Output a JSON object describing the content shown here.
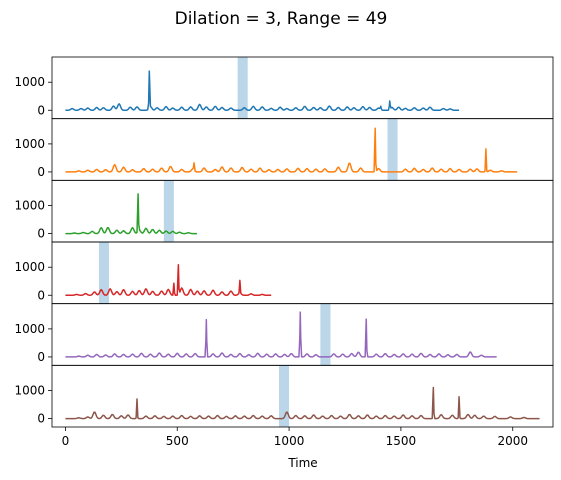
{
  "chart_data": {
    "type": "line",
    "title": "Dilation = 3, Range = 49",
    "xlabel": "Time",
    "xlim": [
      -60,
      2180
    ],
    "x_ticks": [
      0,
      500,
      1000,
      1500,
      2000
    ],
    "ylim": [
      -300,
      1900
    ],
    "y_ticks": [
      0,
      1000
    ],
    "panels": [
      {
        "color": "#1f77b4",
        "length": 1760,
        "highlight": [
          770,
          815
        ],
        "bumps": [
          [
            30,
            60
          ],
          [
            70,
            60
          ],
          [
            100,
            80
          ],
          [
            140,
            100
          ],
          [
            170,
            90
          ],
          [
            215,
            150
          ],
          [
            240,
            230
          ],
          [
            290,
            110
          ],
          [
            320,
            120
          ],
          [
            380,
            130
          ],
          [
            410,
            90
          ],
          [
            450,
            130
          ],
          [
            480,
            80
          ],
          [
            520,
            110
          ],
          [
            560,
            120
          ],
          [
            600,
            210
          ],
          [
            630,
            120
          ],
          [
            670,
            140
          ],
          [
            700,
            100
          ],
          [
            740,
            80
          ],
          [
            800,
            90
          ],
          [
            840,
            140
          ],
          [
            880,
            120
          ],
          [
            920,
            70
          ],
          [
            960,
            110
          ],
          [
            990,
            60
          ],
          [
            1030,
            90
          ],
          [
            1070,
            140
          ],
          [
            1110,
            100
          ],
          [
            1140,
            90
          ],
          [
            1180,
            150
          ],
          [
            1220,
            100
          ],
          [
            1260,
            120
          ],
          [
            1290,
            90
          ],
          [
            1330,
            130
          ],
          [
            1360,
            100
          ],
          [
            1400,
            80
          ],
          [
            1460,
            100
          ],
          [
            1490,
            110
          ],
          [
            1520,
            70
          ],
          [
            1560,
            90
          ],
          [
            1600,
            80
          ],
          [
            1630,
            110
          ],
          [
            1690,
            60
          ],
          [
            1720,
            50
          ]
        ],
        "spikes": [
          [
            375,
            1300
          ],
          [
            1450,
            300
          ],
          [
            1410,
            120
          ]
        ]
      },
      {
        "color": "#ff7f0e",
        "length": 2020,
        "highlight": [
          1440,
          1485
        ],
        "bumps": [
          [
            60,
            40
          ],
          [
            100,
            60
          ],
          [
            140,
            90
          ],
          [
            180,
            80
          ],
          [
            220,
            260
          ],
          [
            260,
            170
          ],
          [
            300,
            80
          ],
          [
            350,
            120
          ],
          [
            390,
            100
          ],
          [
            430,
            140
          ],
          [
            470,
            200
          ],
          [
            520,
            90
          ],
          [
            570,
            110
          ],
          [
            620,
            140
          ],
          [
            670,
            90
          ],
          [
            700,
            180
          ],
          [
            740,
            140
          ],
          [
            790,
            160
          ],
          [
            830,
            100
          ],
          [
            870,
            140
          ],
          [
            910,
            80
          ],
          [
            950,
            90
          ],
          [
            990,
            110
          ],
          [
            1040,
            130
          ],
          [
            1080,
            120
          ],
          [
            1120,
            100
          ],
          [
            1160,
            110
          ],
          [
            1220,
            170
          ],
          [
            1270,
            320
          ],
          [
            1320,
            140
          ],
          [
            1400,
            120
          ],
          [
            1520,
            100
          ],
          [
            1560,
            130
          ],
          [
            1600,
            90
          ],
          [
            1640,
            140
          ],
          [
            1680,
            100
          ],
          [
            1720,
            120
          ],
          [
            1760,
            90
          ],
          [
            1810,
            100
          ],
          [
            1840,
            110
          ],
          [
            1900,
            60
          ],
          [
            1950,
            40
          ]
        ],
        "spikes": [
          [
            575,
            240
          ],
          [
            1385,
            1550
          ],
          [
            1880,
            820
          ]
        ]
      },
      {
        "color": "#2ca02c",
        "length": 590,
        "highlight": [
          440,
          485
        ],
        "bumps": [
          [
            40,
            20
          ],
          [
            80,
            40
          ],
          [
            120,
            80
          ],
          [
            160,
            210
          ],
          [
            190,
            220
          ],
          [
            230,
            120
          ],
          [
            260,
            100
          ],
          [
            300,
            210
          ],
          [
            330,
            120
          ],
          [
            360,
            190
          ],
          [
            390,
            150
          ],
          [
            420,
            120
          ],
          [
            450,
            90
          ],
          [
            480,
            80
          ],
          [
            510,
            50
          ],
          [
            550,
            30
          ]
        ],
        "spikes": [
          [
            325,
            1330
          ]
        ]
      },
      {
        "color": "#d62728",
        "length": 920,
        "highlight": [
          150,
          195
        ],
        "bumps": [
          [
            50,
            30
          ],
          [
            90,
            60
          ],
          [
            130,
            120
          ],
          [
            160,
            200
          ],
          [
            200,
            230
          ],
          [
            230,
            130
          ],
          [
            260,
            200
          ],
          [
            300,
            140
          ],
          [
            330,
            170
          ],
          [
            360,
            230
          ],
          [
            390,
            140
          ],
          [
            430,
            150
          ],
          [
            460,
            210
          ],
          [
            520,
            260
          ],
          [
            560,
            210
          ],
          [
            590,
            150
          ],
          [
            620,
            160
          ],
          [
            660,
            180
          ],
          [
            700,
            120
          ],
          [
            740,
            150
          ],
          [
            780,
            80
          ],
          [
            830,
            50
          ],
          [
            880,
            30
          ]
        ],
        "spikes": [
          [
            505,
            1070
          ],
          [
            485,
            430
          ],
          [
            780,
            450
          ]
        ]
      },
      {
        "color": "#9467bd",
        "length": 1930,
        "highlight": [
          1140,
          1185
        ],
        "bumps": [
          [
            60,
            30
          ],
          [
            100,
            60
          ],
          [
            140,
            90
          ],
          [
            180,
            70
          ],
          [
            220,
            110
          ],
          [
            260,
            90
          ],
          [
            300,
            100
          ],
          [
            340,
            130
          ],
          [
            380,
            100
          ],
          [
            420,
            140
          ],
          [
            460,
            100
          ],
          [
            500,
            130
          ],
          [
            540,
            110
          ],
          [
            580,
            120
          ],
          [
            660,
            110
          ],
          [
            700,
            140
          ],
          [
            740,
            90
          ],
          [
            780,
            120
          ],
          [
            820,
            80
          ],
          [
            860,
            130
          ],
          [
            900,
            100
          ],
          [
            940,
            110
          ],
          [
            980,
            90
          ],
          [
            1010,
            120
          ],
          [
            1080,
            110
          ],
          [
            1120,
            80
          ],
          [
            1200,
            110
          ],
          [
            1240,
            100
          ],
          [
            1280,
            120
          ],
          [
            1310,
            170
          ],
          [
            1390,
            100
          ],
          [
            1430,
            120
          ],
          [
            1470,
            90
          ],
          [
            1510,
            110
          ],
          [
            1550,
            100
          ],
          [
            1590,
            130
          ],
          [
            1630,
            90
          ],
          [
            1670,
            110
          ],
          [
            1710,
            80
          ],
          [
            1750,
            90
          ],
          [
            1810,
            180
          ],
          [
            1860,
            60
          ]
        ],
        "spikes": [
          [
            630,
            1330
          ],
          [
            1050,
            1600
          ],
          [
            1345,
            1350
          ]
        ]
      },
      {
        "color": "#8c564b",
        "length": 2120,
        "highlight": [
          955,
          1000
        ],
        "bumps": [
          [
            60,
            30
          ],
          [
            100,
            60
          ],
          [
            130,
            240
          ],
          [
            170,
            120
          ],
          [
            210,
            150
          ],
          [
            250,
            100
          ],
          [
            280,
            130
          ],
          [
            360,
            90
          ],
          [
            400,
            100
          ],
          [
            440,
            80
          ],
          [
            480,
            90
          ],
          [
            520,
            110
          ],
          [
            560,
            80
          ],
          [
            600,
            100
          ],
          [
            640,
            90
          ],
          [
            680,
            110
          ],
          [
            720,
            80
          ],
          [
            760,
            100
          ],
          [
            800,
            90
          ],
          [
            840,
            110
          ],
          [
            880,
            90
          ],
          [
            920,
            100
          ],
          [
            990,
            240
          ],
          [
            1030,
            110
          ],
          [
            1070,
            100
          ],
          [
            1110,
            130
          ],
          [
            1150,
            90
          ],
          [
            1190,
            110
          ],
          [
            1230,
            90
          ],
          [
            1270,
            150
          ],
          [
            1310,
            100
          ],
          [
            1350,
            130
          ],
          [
            1390,
            90
          ],
          [
            1430,
            110
          ],
          [
            1470,
            90
          ],
          [
            1510,
            130
          ],
          [
            1550,
            100
          ],
          [
            1590,
            110
          ],
          [
            1680,
            140
          ],
          [
            1730,
            120
          ],
          [
            1800,
            150
          ],
          [
            1830,
            120
          ],
          [
            1870,
            90
          ],
          [
            1920,
            80
          ],
          [
            1990,
            60
          ],
          [
            2050,
            40
          ]
        ],
        "spikes": [
          [
            320,
            700
          ],
          [
            1645,
            1110
          ],
          [
            1760,
            780
          ]
        ]
      }
    ]
  }
}
